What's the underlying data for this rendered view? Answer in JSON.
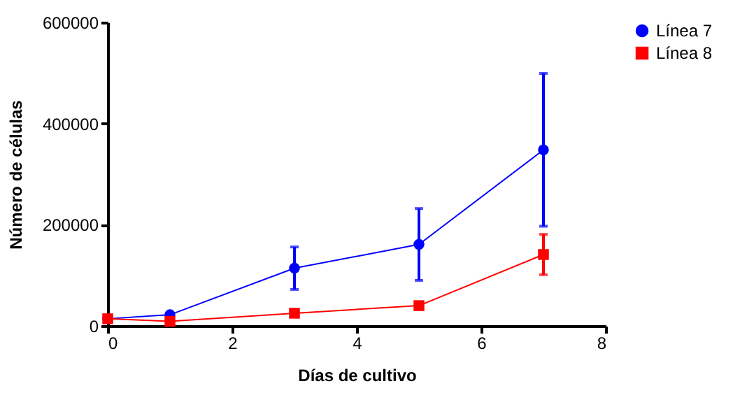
{
  "chart_data": {
    "type": "line",
    "xlabel": "Días de cultivo",
    "ylabel": "Número de células",
    "x": [
      0,
      1,
      3,
      5,
      7
    ],
    "series": [
      {
        "name": "Línea 7",
        "color": "#0000ff",
        "marker": "circle",
        "values": [
          14000,
          22000,
          114000,
          161000,
          348000
        ],
        "errors": [
          null,
          null,
          42000,
          71000,
          151000
        ]
      },
      {
        "name": "Línea 8",
        "color": "#ff0000",
        "marker": "square",
        "values": [
          14000,
          9000,
          25000,
          40000,
          141000
        ],
        "errors": [
          null,
          null,
          null,
          null,
          40000
        ]
      }
    ],
    "xlim": [
      0,
      8
    ],
    "xticks": [
      0,
      2,
      4,
      6,
      8
    ],
    "ylim": [
      0,
      600000
    ],
    "yticks": [
      0,
      200000,
      400000,
      600000
    ],
    "grid": false,
    "legend": "top right"
  }
}
